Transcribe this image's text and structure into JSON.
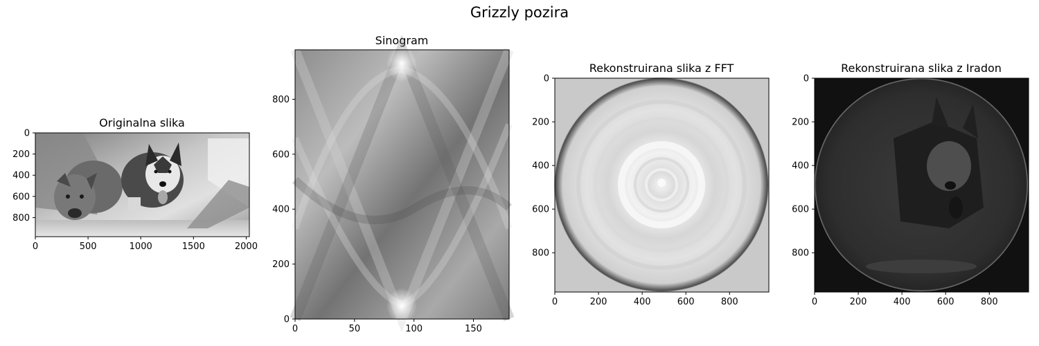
{
  "figure": {
    "suptitle": "Grizzly pozira"
  },
  "chart_data": [
    {
      "type": "heatmap",
      "title": "Originalna slika",
      "content": "grayscale photograph",
      "colormap": "gray",
      "xlim": [
        0,
        2030
      ],
      "ylim": [
        980,
        0
      ],
      "xticks": [
        0,
        500,
        1000,
        1500,
        2000
      ],
      "yticks": [
        0,
        200,
        400,
        600,
        800
      ]
    },
    {
      "type": "heatmap",
      "title": "Sinogram",
      "content": "sinogram",
      "colormap": "gray",
      "xlim": [
        0,
        180
      ],
      "ylim": [
        0,
        980
      ],
      "xticks": [
        0,
        50,
        100,
        150
      ],
      "yticks": [
        0,
        200,
        400,
        600,
        800
      ]
    },
    {
      "type": "heatmap",
      "title": "Rekonstruirana slika z FFT",
      "content": "reconstruction (FFT)",
      "colormap": "gray",
      "xlim": [
        0,
        980
      ],
      "ylim": [
        980,
        0
      ],
      "xticks": [
        0,
        200,
        400,
        600,
        800
      ],
      "yticks": [
        0,
        200,
        400,
        600,
        800
      ]
    },
    {
      "type": "heatmap",
      "title": "Rekonstruirana slika z Iradon",
      "content": "reconstruction (Iradon)",
      "colormap": "gray",
      "xlim": [
        0,
        980
      ],
      "ylim": [
        980,
        0
      ],
      "xticks": [
        0,
        200,
        400,
        600,
        800
      ],
      "yticks": [
        0,
        200,
        400,
        600,
        800
      ]
    }
  ]
}
